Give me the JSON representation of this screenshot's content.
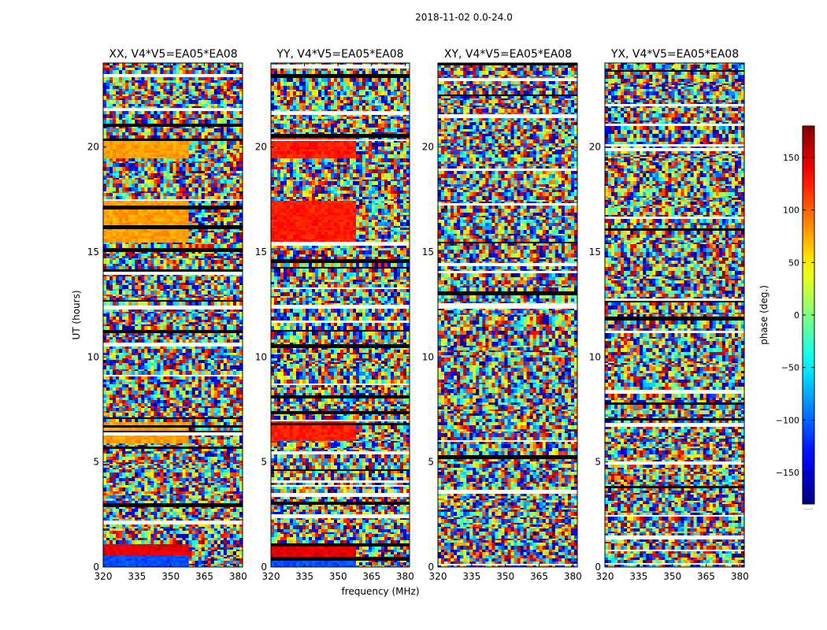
{
  "chart_data": {
    "type": "heatmap",
    "suptitle": "2018-11-02 0.0-24.0",
    "xlabel": "frequency (MHz)",
    "ylabel": "UT (hours)",
    "colorbar_label": "phase (deg.)",
    "colorbar_range": [
      -180,
      180
    ],
    "colorbar_ticks": [
      "150",
      "100",
      "50",
      "0",
      "−50",
      "−100",
      "−150"
    ],
    "colorbar_tick_values": [
      150,
      100,
      50,
      0,
      -50,
      -100,
      -150
    ],
    "colorbar_footnote": ".....",
    "colormap": "jet",
    "xlim": [
      320,
      382
    ],
    "ylim": [
      0,
      24
    ],
    "x_ticks": [
      "320",
      "335",
      "350",
      "365",
      "380"
    ],
    "x_tick_values": [
      320,
      335,
      350,
      365,
      380
    ],
    "y_ticks": [
      "0",
      "5",
      "10",
      "15",
      "20"
    ],
    "y_tick_values": [
      0,
      5,
      10,
      15,
      20
    ],
    "panels": [
      {
        "title": "XX, V4*V5=EA05*EA08",
        "polarization": "XX"
      },
      {
        "title": "YY, V4*V5=EA05*EA08",
        "polarization": "YY"
      },
      {
        "title": "XY, V4*V5=EA05*EA08",
        "polarization": "XY"
      },
      {
        "title": "YX, V4*V5=EA05*EA08",
        "polarization": "YX"
      }
    ]
  }
}
